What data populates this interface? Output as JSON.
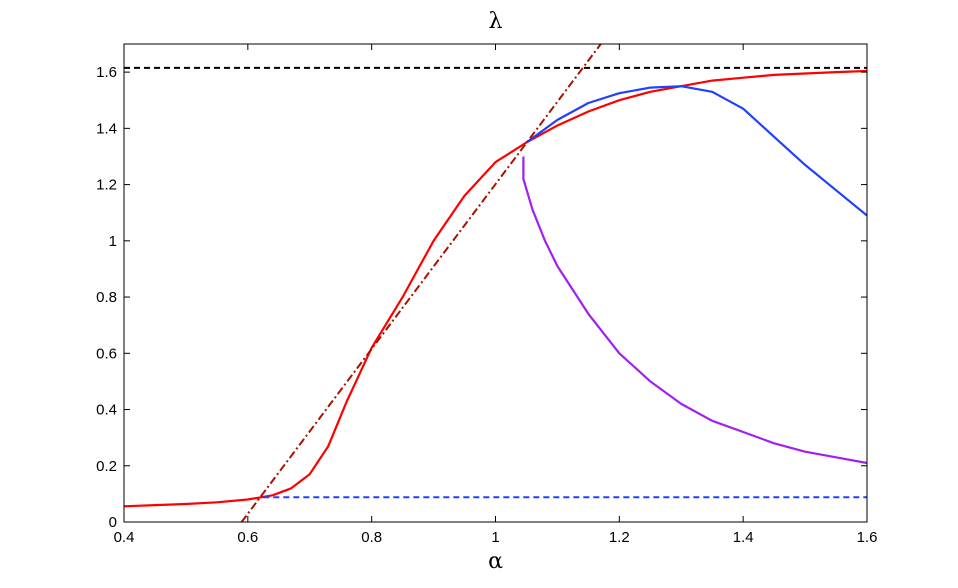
{
  "chart_data": {
    "type": "line",
    "title": "λ",
    "xlabel": "α",
    "ylabel": "",
    "xlim": [
      0.4,
      1.6
    ],
    "ylim": [
      0,
      1.7
    ],
    "grid": false,
    "xticks": [
      {
        "value": 0.4,
        "label": "0.4"
      },
      {
        "value": 0.6,
        "label": "0.6"
      },
      {
        "value": 0.8,
        "label": "0.8"
      },
      {
        "value": 1.0,
        "label": "1"
      },
      {
        "value": 1.2,
        "label": "1.2"
      },
      {
        "value": 1.4,
        "label": "1.4"
      },
      {
        "value": 1.6,
        "label": "1.6"
      }
    ],
    "yticks": [
      {
        "value": 0,
        "label": "0"
      },
      {
        "value": 0.2,
        "label": "0.2"
      },
      {
        "value": 0.4,
        "label": "0.4"
      },
      {
        "value": 0.6,
        "label": "0.6"
      },
      {
        "value": 0.8,
        "label": "0.8"
      },
      {
        "value": 1.0,
        "label": "1"
      },
      {
        "value": 1.2,
        "label": "1.2"
      },
      {
        "value": 1.4,
        "label": "1.4"
      },
      {
        "value": 1.6,
        "label": "1.6"
      }
    ],
    "series": [
      {
        "color": "#ff0000",
        "style": "solid",
        "points": [
          [
            0.4,
            0.056
          ],
          [
            0.45,
            0.06
          ],
          [
            0.5,
            0.064
          ],
          [
            0.55,
            0.07
          ],
          [
            0.6,
            0.08
          ],
          [
            0.64,
            0.095
          ],
          [
            0.67,
            0.12
          ],
          [
            0.7,
            0.17
          ],
          [
            0.73,
            0.27
          ],
          [
            0.76,
            0.43
          ],
          [
            0.8,
            0.62
          ],
          [
            0.85,
            0.8
          ],
          [
            0.9,
            1.0
          ],
          [
            0.95,
            1.16
          ],
          [
            1.0,
            1.28
          ],
          [
            1.05,
            1.35
          ],
          [
            1.1,
            1.41
          ],
          [
            1.15,
            1.46
          ],
          [
            1.2,
            1.5
          ],
          [
            1.25,
            1.53
          ],
          [
            1.3,
            1.55
          ],
          [
            1.35,
            1.57
          ],
          [
            1.4,
            1.58
          ],
          [
            1.45,
            1.59
          ],
          [
            1.5,
            1.595
          ],
          [
            1.55,
            1.6
          ],
          [
            1.6,
            1.604
          ]
        ]
      },
      {
        "color": "#2040ff",
        "style": "solid",
        "points": [
          [
            1.05,
            1.35
          ],
          [
            1.1,
            1.43
          ],
          [
            1.15,
            1.49
          ],
          [
            1.2,
            1.525
          ],
          [
            1.25,
            1.545
          ],
          [
            1.3,
            1.55
          ],
          [
            1.35,
            1.53
          ],
          [
            1.4,
            1.47
          ],
          [
            1.45,
            1.37
          ],
          [
            1.5,
            1.27
          ],
          [
            1.55,
            1.18
          ],
          [
            1.6,
            1.09
          ]
        ]
      },
      {
        "color": "#a020f0",
        "style": "solid",
        "points": [
          [
            1.045,
            1.3
          ],
          [
            1.045,
            1.22
          ],
          [
            1.06,
            1.11
          ],
          [
            1.08,
            1.0
          ],
          [
            1.1,
            0.91
          ],
          [
            1.15,
            0.74
          ],
          [
            1.2,
            0.6
          ],
          [
            1.25,
            0.5
          ],
          [
            1.3,
            0.42
          ],
          [
            1.35,
            0.36
          ],
          [
            1.4,
            0.32
          ],
          [
            1.45,
            0.28
          ],
          [
            1.5,
            0.25
          ],
          [
            1.55,
            0.23
          ],
          [
            1.6,
            0.21
          ]
        ]
      },
      {
        "color": "#000000",
        "style": "dashed",
        "points": [
          [
            0.4,
            1.615
          ],
          [
            1.6,
            1.615
          ]
        ]
      },
      {
        "color": "#2040ff",
        "style": "dashed",
        "points": [
          [
            0.625,
            0.088
          ],
          [
            1.6,
            0.088
          ]
        ]
      },
      {
        "color": "#aa1100",
        "style": "dashdot",
        "points": [
          [
            0.59,
            0.0
          ],
          [
            1.17,
            1.7
          ]
        ]
      }
    ]
  }
}
